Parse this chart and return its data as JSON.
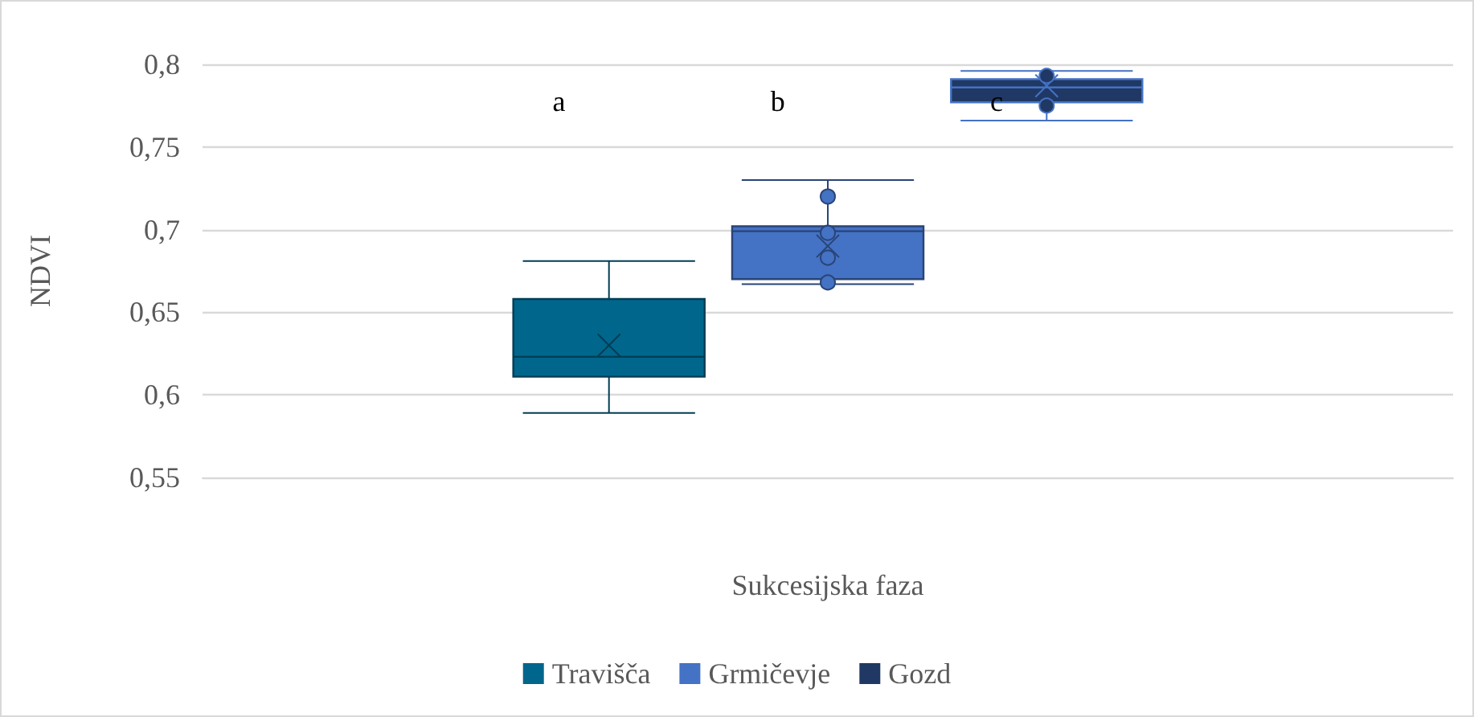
{
  "chart_data": {
    "type": "box",
    "xlabel": "Sukcesijska faza",
    "ylabel": "NDVI",
    "categories": [
      null
    ],
    "series": [
      {
        "name": "Travišča",
        "color": "#00668c",
        "boxes": [
          {
            "low": 0.589,
            "q1": 0.611,
            "median": 0.623,
            "q3": 0.658,
            "high": 0.681,
            "mean": 0.63
          }
        ]
      },
      {
        "name": "Grmičevje",
        "color": "#4472c4",
        "boxes": [
          {
            "low": 0.667,
            "q1": 0.67,
            "median": 0.699,
            "q3": 0.702,
            "high": 0.73,
            "mean": 0.69,
            "outliers": [
              0.72,
              0.698,
              0.683,
              0.668
            ]
          }
        ]
      },
      {
        "name": "Gozd",
        "color": "#203864",
        "boxes": [
          {
            "low": 0.766,
            "q1": 0.777,
            "median": 0.786,
            "q3": 0.791,
            "high": 0.796,
            "mean": 0.787,
            "outliers": [
              0.793,
              0.775
            ]
          }
        ]
      }
    ],
    "annotations": [
      "a",
      "b",
      "c"
    ],
    "ylim": [
      0.55,
      0.8
    ],
    "yticks": [
      {
        "value": 0.55,
        "label": "0,55"
      },
      {
        "value": 0.6,
        "label": "0,6"
      },
      {
        "value": 0.65,
        "label": "0,65"
      },
      {
        "value": 0.7,
        "label": "0,7"
      },
      {
        "value": 0.75,
        "label": "0,75"
      },
      {
        "value": 0.8,
        "label": "0,8"
      }
    ],
    "grid": "y",
    "legend": "bottom"
  }
}
